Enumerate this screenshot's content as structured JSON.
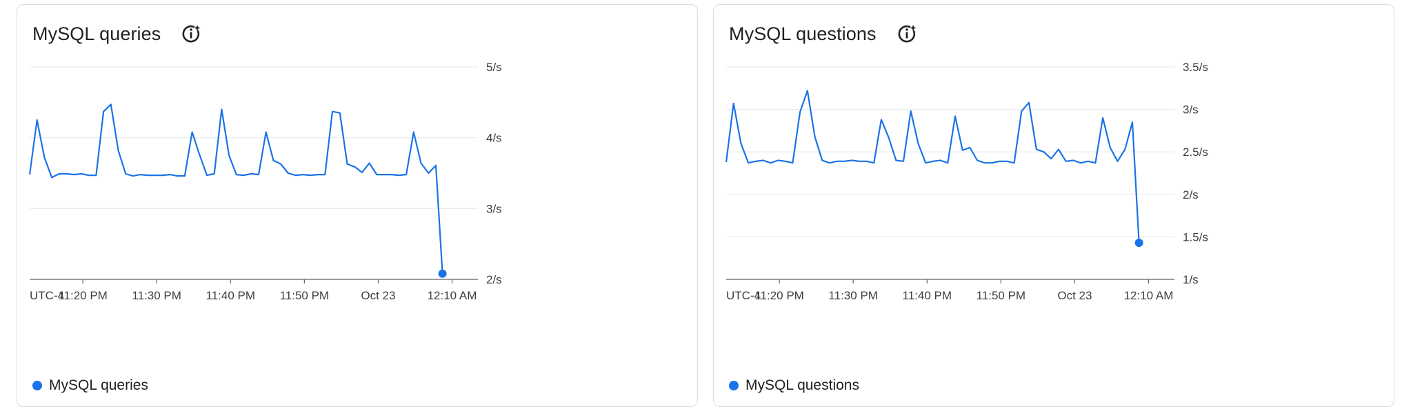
{
  "colors": {
    "series": "#1a73e8",
    "grid": "#e8eaed",
    "axis": "#5f6368"
  },
  "icons": {
    "info": "info-sparkle-icon"
  },
  "chart_data": [
    {
      "type": "line",
      "title": "MySQL queries",
      "legend": "MySQL queries",
      "timezone_label": "UTC-4",
      "x_tick_labels": [
        "11:20 PM",
        "11:30 PM",
        "11:40 PM",
        "11:50 PM",
        "Oct 23",
        "12:10 AM"
      ],
      "y_tick_labels": [
        "5/s",
        "4/s",
        "3/s",
        "2/s"
      ],
      "y_ticks": [
        5,
        4,
        3,
        2
      ],
      "ylim": [
        2,
        5
      ],
      "x_range_minutes": [
        0,
        60.7
      ],
      "x_tick_minutes": [
        7.2,
        17.2,
        27.2,
        37.2,
        47.2,
        57.2
      ],
      "grid": true,
      "legend_position": "bottom-left",
      "series": [
        {
          "name": "MySQL queries",
          "x": [
            0,
            1,
            2,
            3,
            4,
            5,
            6,
            7,
            8,
            9,
            10,
            11,
            12,
            13,
            14,
            15,
            16,
            17,
            18,
            19,
            20,
            21,
            22,
            23,
            24,
            25,
            26,
            27,
            28,
            29,
            30,
            31,
            32,
            33,
            34,
            35,
            36,
            37,
            38,
            39,
            40,
            41,
            42,
            43,
            44,
            45,
            46,
            47,
            48,
            49,
            50,
            51,
            52,
            53,
            54,
            55,
            55.9
          ],
          "values": [
            3.48,
            4.25,
            3.72,
            3.44,
            3.49,
            3.49,
            3.48,
            3.49,
            3.47,
            3.47,
            4.37,
            4.47,
            3.82,
            3.49,
            3.46,
            3.48,
            3.47,
            3.47,
            3.47,
            3.48,
            3.46,
            3.46,
            4.08,
            3.76,
            3.47,
            3.49,
            4.4,
            3.75,
            3.48,
            3.47,
            3.49,
            3.48,
            4.08,
            3.68,
            3.63,
            3.5,
            3.47,
            3.48,
            3.47,
            3.48,
            3.48,
            4.37,
            4.35,
            3.63,
            3.59,
            3.51,
            3.64,
            3.48,
            3.48,
            3.48,
            3.47,
            3.48,
            4.08,
            3.64,
            3.5,
            3.61,
            2.08
          ]
        }
      ]
    },
    {
      "type": "line",
      "title": "MySQL questions",
      "legend": "MySQL questions",
      "timezone_label": "UTC-4",
      "x_tick_labels": [
        "11:20 PM",
        "11:30 PM",
        "11:40 PM",
        "11:50 PM",
        "Oct 23",
        "12:10 AM"
      ],
      "y_tick_labels": [
        "3.5/s",
        "3/s",
        "2.5/s",
        "2/s",
        "1.5/s",
        "1/s"
      ],
      "y_ticks": [
        3.5,
        3,
        2.5,
        2,
        1.5,
        1
      ],
      "ylim": [
        1,
        3.5
      ],
      "x_range_minutes": [
        0,
        60.7
      ],
      "x_tick_minutes": [
        7.2,
        17.2,
        27.2,
        37.2,
        47.2,
        57.2
      ],
      "grid": true,
      "legend_position": "bottom-left",
      "series": [
        {
          "name": "MySQL questions",
          "x": [
            0,
            1,
            2,
            3,
            4,
            5,
            6,
            7,
            8,
            9,
            10,
            11,
            12,
            13,
            14,
            15,
            16,
            17,
            18,
            19,
            20,
            21,
            22,
            23,
            24,
            25,
            26,
            27,
            28,
            29,
            30,
            31,
            32,
            33,
            34,
            35,
            36,
            37,
            38,
            39,
            40,
            41,
            42,
            43,
            44,
            45,
            46,
            47,
            48,
            49,
            50,
            51,
            52,
            53,
            54,
            55,
            55.9
          ],
          "values": [
            2.38,
            3.07,
            2.6,
            2.37,
            2.39,
            2.4,
            2.37,
            2.4,
            2.39,
            2.37,
            2.97,
            3.22,
            2.68,
            2.4,
            2.37,
            2.39,
            2.39,
            2.4,
            2.39,
            2.39,
            2.37,
            2.88,
            2.67,
            2.4,
            2.39,
            2.98,
            2.6,
            2.37,
            2.39,
            2.4,
            2.37,
            2.92,
            2.52,
            2.55,
            2.4,
            2.37,
            2.37,
            2.39,
            2.39,
            2.37,
            2.98,
            3.08,
            2.53,
            2.5,
            2.42,
            2.53,
            2.39,
            2.4,
            2.37,
            2.39,
            2.37,
            2.9,
            2.55,
            2.39,
            2.53,
            2.85,
            1.43
          ]
        }
      ]
    }
  ]
}
